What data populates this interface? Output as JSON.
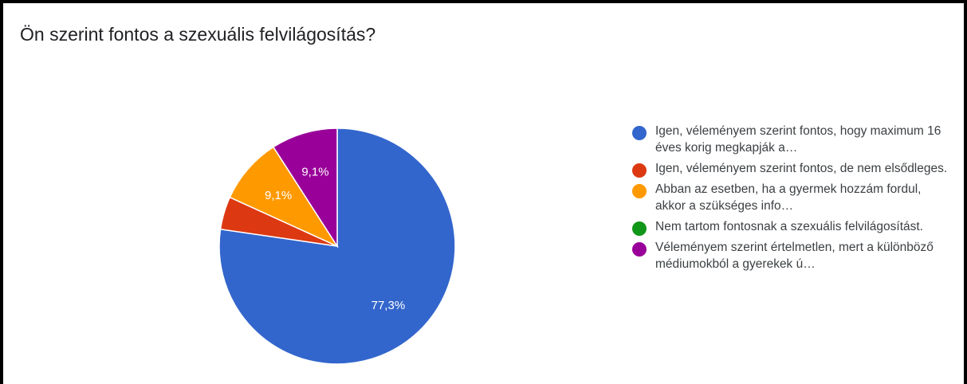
{
  "title": "Ön szerint fontos a szexuális felvilágosítás?",
  "chart_data": {
    "type": "pie",
    "title": "Ön szerint fontos a szexuális felvilágosítás?",
    "slices": [
      {
        "label": "Igen, véleményem szerint fontos, hogy maximum 16 éves korig megkapják a…",
        "value": 77.3,
        "value_label": "77,3%",
        "color": "#3366cc"
      },
      {
        "label": "Igen, véleményem szerint fontos, de nem elsődleges.",
        "value": 4.5,
        "value_label": "",
        "color": "#dc3912"
      },
      {
        "label": "Abban az esetben, ha a gyermek hozzám fordul, akkor a szükséges info…",
        "value": 9.1,
        "value_label": "9,1%",
        "color": "#ff9900"
      },
      {
        "label": "Nem tartom fontosnak a szexuális felvilágosítást.",
        "value": 0,
        "value_label": "",
        "color": "#109618"
      },
      {
        "label": "Véleményem szerint értelmetlen, mert a különböző médiumokból a gyerekek ú…",
        "value": 9.1,
        "value_label": "9,1%",
        "color": "#990099"
      }
    ],
    "legend_position": "right"
  }
}
